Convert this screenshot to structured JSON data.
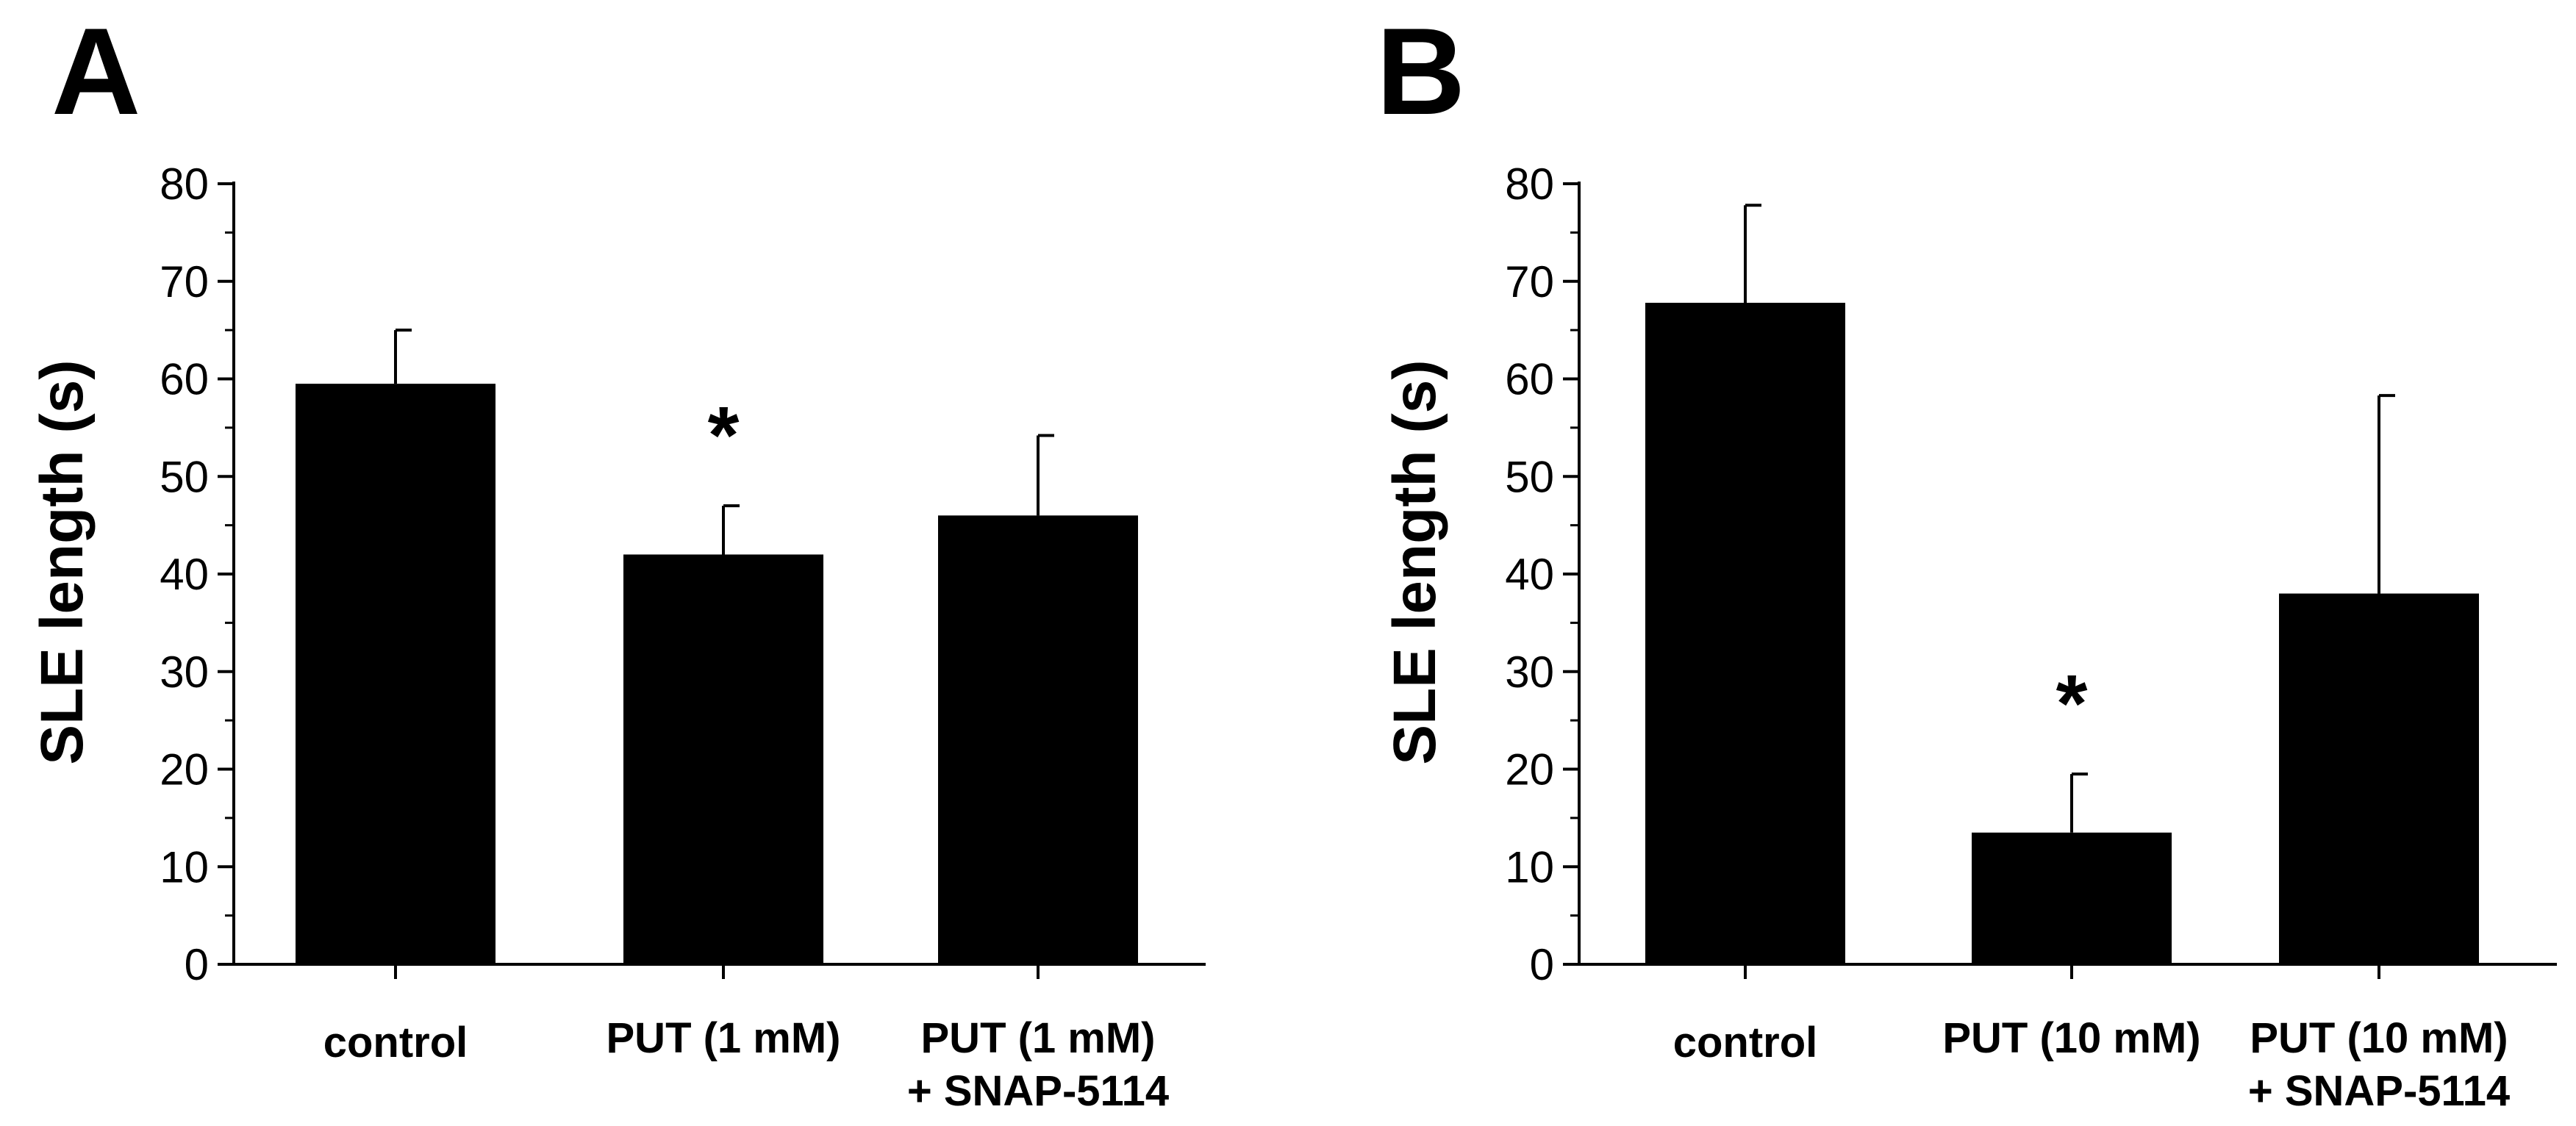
{
  "chart_data": [
    {
      "type": "bar",
      "panel_label": "A",
      "ylabel": "SLE length (s)",
      "xlabel": "",
      "ylim": [
        0,
        80
      ],
      "yticks": [
        "0",
        "10",
        "20",
        "30",
        "40",
        "50",
        "60",
        "70",
        "80"
      ],
      "categories": [
        {
          "line1": "control",
          "line2": ""
        },
        {
          "line1": "PUT (1 mM)",
          "line2": ""
        },
        {
          "line1": "PUT (1 mM)",
          "line2": "+ SNAP-5114"
        }
      ],
      "values": [
        59.5,
        42,
        46
      ],
      "errors": [
        5.5,
        5,
        8.2
      ],
      "significance": [
        "",
        "*",
        ""
      ],
      "bar_color": "#000000"
    },
    {
      "type": "bar",
      "panel_label": "B",
      "ylabel": "SLE length (s)",
      "xlabel": "",
      "ylim": [
        0,
        80
      ],
      "yticks": [
        "0",
        "10",
        "20",
        "30",
        "40",
        "50",
        "60",
        "70",
        "80"
      ],
      "categories": [
        {
          "line1": "control",
          "line2": ""
        },
        {
          "line1": "PUT (10 mM)",
          "line2": ""
        },
        {
          "line1": "PUT (10 mM)",
          "line2": "+ SNAP-5114"
        }
      ],
      "values": [
        67.8,
        13.5,
        38
      ],
      "errors": [
        10,
        6,
        20.3
      ],
      "significance": [
        "",
        "*",
        ""
      ],
      "bar_color": "#000000"
    }
  ]
}
